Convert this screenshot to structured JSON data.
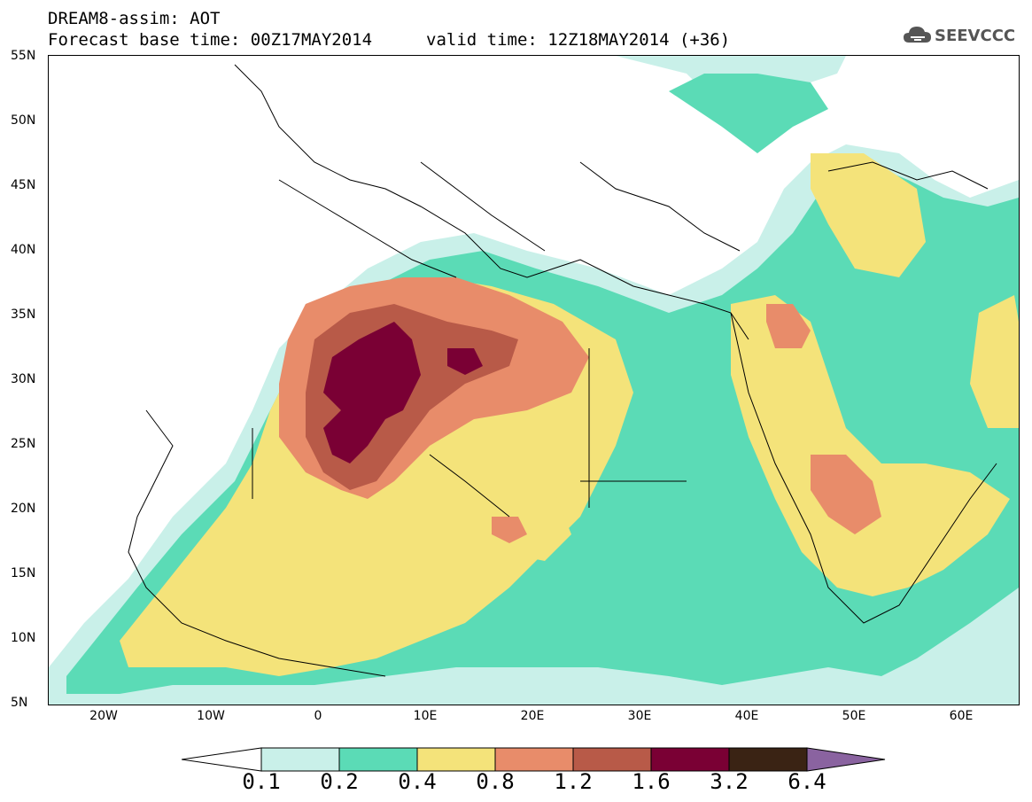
{
  "header": {
    "title": "DREAM8-assim: AOT",
    "base_time": "Forecast base time: 00Z17MAY2014",
    "valid_time": "valid time: 12Z18MAY2014 (+36)"
  },
  "logo": {
    "text": "SEEVCCC",
    "icon": "cloud-icon"
  },
  "map": {
    "lat_labels": [
      "55N",
      "50N",
      "45N",
      "40N",
      "35N",
      "30N",
      "25N",
      "20N",
      "15N",
      "10N",
      "5N"
    ],
    "lon_labels": [
      "20W",
      "10W",
      "0",
      "10E",
      "20E",
      "30E",
      "40E",
      "50E",
      "60E"
    ],
    "lon_range": [
      -25,
      65
    ],
    "lat_range": [
      5,
      55
    ]
  },
  "colorbar": {
    "levels": [
      "0.1",
      "0.2",
      "0.4",
      "0.8",
      "1.2",
      "1.6",
      "3.2",
      "6.4"
    ],
    "colors": [
      "#ffffff",
      "#c9f0e9",
      "#5bdbb6",
      "#f4e37a",
      "#e88c6a",
      "#b85a48",
      "#7a0034",
      "#3a2314",
      "#8a63a0"
    ]
  }
}
